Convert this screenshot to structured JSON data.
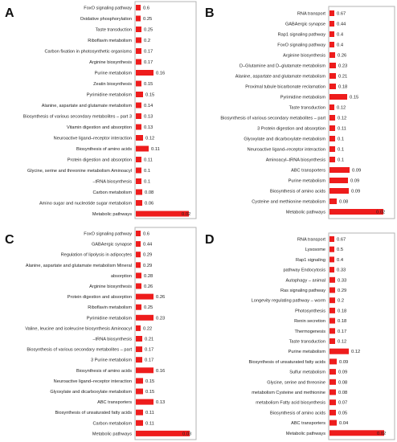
{
  "bar_color": "#ee1c1c",
  "frame_color": "#b3b3b3",
  "chart_data": [
    {
      "type": "bar",
      "orientation": "horizontal",
      "panel_label": "A",
      "grid": false,
      "categories": [
        "FoxO signaling pathway",
        "Oxidative phosphorylation",
        "Taste transduction",
        "Riboflavin metabolism",
        "Carbon fixation in photosynthetic organisms",
        "Arginine biosynthesis",
        "Purine metabolism",
        "Zeatin biosynthesis",
        "Pyrimidine metabolism",
        "Alanine, aspartate and glutamate metabolism",
        "Biosynthesis of various secondary metabolites – part 3",
        "Vitamin digestion and absorption",
        "Neuroactive ligand–receptor interaction",
        "Biosynthesis of amino acids",
        "Protein digestion and absorption",
        "Glycine, serine and threonine metabolism Aminoacyl",
        "–tRNA biosynthesis",
        "Carbon metabolism",
        "Amino sugar and nucleotide sugar metabolism",
        "Metabolic pathways"
      ],
      "value_labels": [
        "0.6",
        "0.25",
        "0.25",
        "0.2",
        "0.17",
        "0.17",
        "0.16",
        "0.15",
        "0.15",
        "0.14",
        "0.13",
        "0.13",
        "0.12",
        "0.11",
        "0.11",
        "0.1",
        "0.1",
        "0.08",
        "0.06",
        "0.02"
      ],
      "bar_lengths": [
        6,
        6,
        7,
        7,
        7,
        7,
        22,
        7,
        9,
        7,
        7,
        7,
        9,
        16,
        7,
        7,
        7,
        8,
        8,
        66
      ]
    },
    {
      "type": "bar",
      "orientation": "horizontal",
      "panel_label": "B",
      "grid": false,
      "categories": [
        "RNA transport",
        "GABAergic synapse",
        "Rap1 signaling pathway",
        "FoxO signaling pathway",
        "Arginine biosynthesis",
        "D–Glutamine and D–glutamate metabolism",
        "Alanine, aspartate and glutamate metabolism",
        "Proximal tubule bicarbonate reclamation",
        "Pyrimidine metabolism",
        "Taste transduction",
        "Biosynthesis of various secondary metabolites – part",
        "3 Protein digestion and absorption",
        "Glyoxylate and dicarboxylate metabolism",
        "Neuroactive ligand–receptor interaction",
        "Aminoacyl–tRNA biosynthesis",
        "ABC transporters",
        "Purine metabolism",
        "Biosynthesis of amino acids",
        "Cysteine and methionine metabolism",
        "Metabolic pathways"
      ],
      "value_labels": [
        "0.67",
        "0.44",
        "0.4",
        "0.4",
        "0.26",
        "0.23",
        "0.21",
        "0.18",
        "0.15",
        "0.12",
        "0.12",
        "0.11",
        "0.1",
        "0.1",
        "0.1",
        "0.09",
        "0.09",
        "0.09",
        "0.08",
        "0.02"
      ],
      "bar_lengths": [
        6,
        6,
        6,
        6,
        7,
        8,
        8,
        8,
        22,
        6,
        7,
        7,
        7,
        7,
        7,
        25,
        23,
        24,
        9,
        67
      ]
    },
    {
      "type": "bar",
      "orientation": "horizontal",
      "panel_label": "C",
      "grid": false,
      "categories": [
        "FoxO signaling pathway",
        "GABAergic synapse",
        "Regulation of lipolysis in adipocytes",
        "Alanine, aspartate and glutamate metabolism Mineral",
        "absorption",
        "Arginine biosynthesis",
        "Protein digestion and absorption",
        "Riboflavin metabolism",
        "Pyrimidine metabolism",
        "Valine, leucine and isoleucine biosynthesis Aminoacyl",
        "–tRNA biosynthesis",
        "Biosynthesis of various secondary metabolites – part",
        "3 Purine metabolism",
        "Biosynthesis of amino acids",
        "Neuroactive ligand–receptor interaction",
        "Glyoxylate and dicarboxylate metabolism",
        "ABC transporters",
        "Biosynthesis of unsaturated fatty acids",
        "Carbon metabolism",
        "Metabolic pathways"
      ],
      "value_labels": [
        "0.6",
        "0.44",
        "0.29",
        "0.29",
        "0.28",
        "0.26",
        "0.26",
        "0.25",
        "0.23",
        "0.22",
        "0.21",
        "0.17",
        "0.17",
        "0.16",
        "0.15",
        "0.15",
        "0.13",
        "0.11",
        "0.11",
        "0.03"
      ],
      "bar_lengths": [
        6,
        6,
        6,
        6,
        7,
        7,
        22,
        7,
        22,
        6,
        8,
        8,
        8,
        22,
        9,
        9,
        22,
        9,
        9,
        67
      ]
    },
    {
      "type": "bar",
      "orientation": "horizontal",
      "panel_label": "D",
      "grid": false,
      "categories": [
        "RNA transport",
        "Lysosome",
        "Rap1 signaling",
        "pathway Endocytosis",
        "Autophagy – animal",
        "Ras signaling pathway",
        "Longevity regulating pathway – worm",
        "Photosynthesis",
        "Renin secretion",
        "Thermogenesis",
        "Taste transduction",
        "Purine metabolism",
        "Biosynthesis of unsaturated fatty acids",
        "Sulfur metabolism",
        "Glycine, serine and threonine",
        "metabolism Cysteine and methionine",
        "metabolism Fatty acid biosynthesis",
        "Biosynthesis of amino acids",
        "ABC transporters",
        "Metabolic pathways"
      ],
      "value_labels": [
        "0.67",
        "0.5",
        "0.4",
        "0.33",
        "0.33",
        "0.29",
        "0.2",
        "0.18",
        "0.18",
        "0.17",
        "0.12",
        "0.12",
        "0.09",
        "0.09",
        "0.08",
        "0.08",
        "0.07",
        "0.05",
        "0.04",
        "0.02"
      ],
      "bar_lengths": [
        6,
        6,
        6,
        6,
        7,
        7,
        7,
        7,
        7,
        7,
        7,
        24,
        9,
        8,
        8,
        8,
        8,
        8,
        9,
        68
      ]
    }
  ]
}
